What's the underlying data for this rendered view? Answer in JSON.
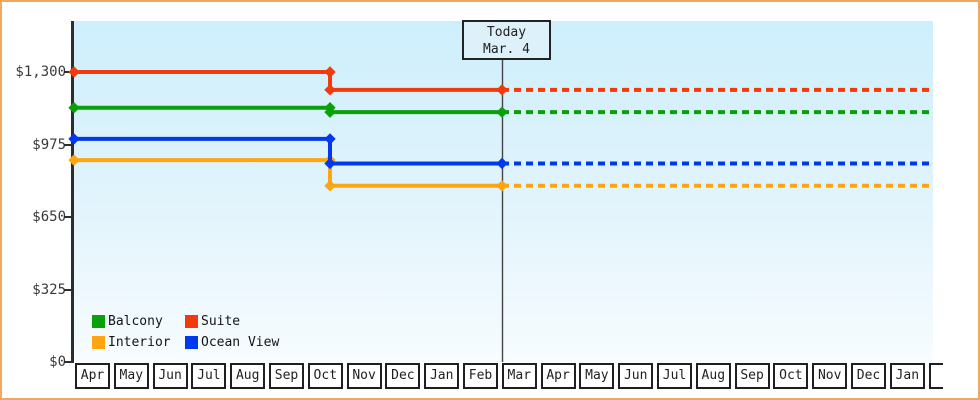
{
  "frame": {
    "border_color": "#f0a85e",
    "background": "#ffffff"
  },
  "chart_data": {
    "type": "line",
    "title": "",
    "description": "Cruise cabin price history by month; solid lines are history up to today, dotted lines continue current price after today",
    "x_tick_labels": [
      "Apr",
      "May",
      "Jun",
      "Jul",
      "Aug",
      "Sep",
      "Oct",
      "Nov",
      "Dec",
      "Jan",
      "Feb",
      "Mar",
      "Apr",
      "May",
      "Jun",
      "Jul",
      "Aug",
      "Sep",
      "Oct",
      "Nov",
      "Dec",
      "Jan"
    ],
    "y_axis": {
      "min": 0,
      "max": 1300,
      "ticks": [
        {
          "label": "$1,300",
          "value": 1300
        },
        {
          "label": "$975",
          "value": 975
        },
        {
          "label": "$650",
          "value": 650
        },
        {
          "label": "$325",
          "value": 325
        },
        {
          "label": "$0",
          "value": 0
        }
      ]
    },
    "price_change": {
      "month": "Oct",
      "note": "all cabin prices step down mid-October"
    },
    "today_marker": {
      "line1": "Today",
      "line2": "Mar. 4"
    },
    "series": [
      {
        "name": "Balcony",
        "color": "#0aa00a",
        "price_until_oct": 1140,
        "price_after_oct": 1120
      },
      {
        "name": "Suite",
        "color": "#f23a0d",
        "price_until_oct": 1300,
        "price_after_oct": 1220
      },
      {
        "name": "Interior",
        "color": "#ffa50f",
        "price_until_oct": 905,
        "price_after_oct": 790
      },
      {
        "name": "Ocean View",
        "color": "#0038ef",
        "price_until_oct": 1000,
        "price_after_oct": 890
      }
    ],
    "legend": {
      "position": "bottom-left inside plot",
      "items": [
        {
          "label": "Balcony",
          "color": "#0aa00a"
        },
        {
          "label": "Suite",
          "color": "#f23a0d"
        },
        {
          "label": "Interior",
          "color": "#ffa50f"
        },
        {
          "label": "Ocean View",
          "color": "#0038ef"
        }
      ]
    }
  }
}
